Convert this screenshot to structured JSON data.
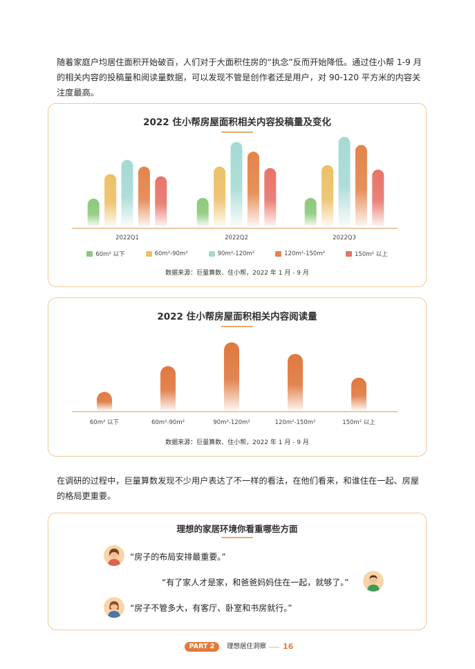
{
  "intro_paragraph": "随着家庭户均居住面积开始破百，人们对于大面积住房的“执念”反而开始降低。通过住小帮 1-9 月的相关内容的投稿量和阅读量数据，可以发现不管是创作者还是用户，对 90-120 平方米的内容关注度最高。",
  "chart1": {
    "title": "2022 住小帮房屋面积相关内容投稿量及变化",
    "source": "数据来源：巨量算数、住小帮，2022 年 1 月 - 9 月"
  },
  "chart2": {
    "title": "2022 住小帮房屋面积相关内容阅读量",
    "source": "数据来源：巨量算数、住小帮，2022 年 1 月 - 9 月"
  },
  "chart_data": [
    {
      "type": "bar",
      "title": "2022 住小帮房屋面积相关内容投稿量及变化",
      "categories": [
        "2022Q1",
        "2022Q2",
        "2022Q3"
      ],
      "series": [
        {
          "name": "60m² 以下",
          "values": [
            37,
            38,
            38
          ],
          "color": "#8cc97a"
        },
        {
          "name": "60m²-90m²",
          "values": [
            70,
            80,
            82
          ],
          "color": "#ecc068"
        },
        {
          "name": "90m²-120m²",
          "values": [
            89,
            113,
            120
          ],
          "color": "#a6dad3"
        },
        {
          "name": "120m²-150m²",
          "values": [
            80,
            100,
            109
          ],
          "color": "#e4844a"
        },
        {
          "name": "150m² 以上",
          "values": [
            67,
            78,
            76
          ],
          "color": "#e97369"
        }
      ],
      "ylim": [
        0,
        130
      ],
      "legend": "bottom",
      "grid": false
    },
    {
      "type": "bar",
      "title": "2022 住小帮房屋面积相关内容阅读量",
      "categories": [
        "60m² 以下",
        "60m²-90m²",
        "90m²-120m²",
        "120m²-150m²",
        "150m² 以上"
      ],
      "values": [
        27,
        65,
        100,
        83,
        48
      ],
      "color": "#e0783f",
      "ylim": [
        0,
        105
      ],
      "grid": false
    }
  ],
  "transition_paragraph": "在调研的过程中，巨量算数发现不少用户表达了不一样的看法，在他们看来，和谁住在一起、房屋的格局更重要。",
  "quotes_card": {
    "title": "理想的家居环境你看重哪些方面",
    "quotes": [
      "“房子的布局安排最重要。”",
      "“有了家人才是家，和爸爸妈妈住在一起，就够了。”",
      "“房子不管多大，有客厅、卧室和书房就行。”"
    ]
  },
  "footer": {
    "part_label": "PART 2",
    "section_title": "理想居住洞察",
    "page_number": "16"
  }
}
